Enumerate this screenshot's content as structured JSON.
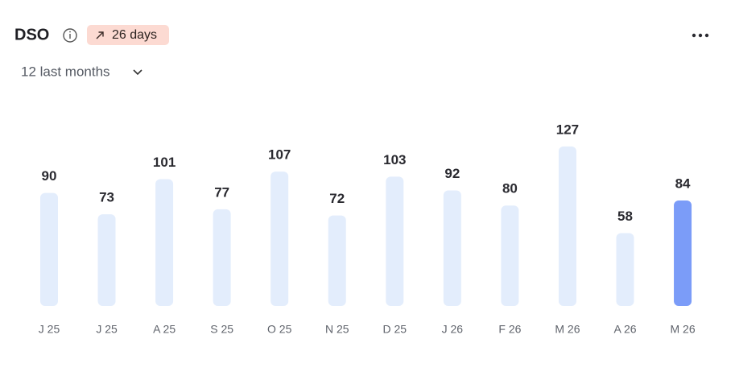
{
  "header": {
    "title": "DSO",
    "badge": "26 days",
    "period": "12 last months"
  },
  "chart_data": {
    "type": "bar",
    "categories": [
      "J 25",
      "J 25",
      "A 25",
      "S 25",
      "O 25",
      "N 25",
      "D 25",
      "J 26",
      "F 26",
      "M 26",
      "A 26",
      "M 26"
    ],
    "values": [
      90,
      73,
      101,
      77,
      107,
      72,
      103,
      92,
      80,
      127,
      58,
      84
    ],
    "colors": [
      "#e3edfc",
      "#e3edfc",
      "#e3edfc",
      "#e3edfc",
      "#e3edfc",
      "#e3edfc",
      "#e3edfc",
      "#e3edfc",
      "#e3edfc",
      "#e3edfc",
      "#e3edfc",
      "#7b9cf8"
    ]
  }
}
